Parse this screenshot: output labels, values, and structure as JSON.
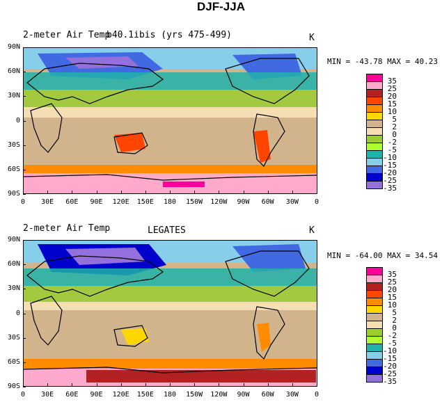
{
  "main_title": "DJF-JJA",
  "panels": [
    {
      "title": "2-meter Air Temp",
      "subtitle": "b40.1ibis (yrs 475-499)",
      "unit": "K",
      "min_label": "MIN =",
      "min_value": "-43.78",
      "max_label": "MAX =",
      "max_value": "40.23"
    },
    {
      "title": "2-meter Air Temp",
      "subtitle": "LEGATES",
      "unit": "K",
      "min_label": "MIN =",
      "min_value": "-64.00",
      "max_label": "MAX =",
      "max_value": "34.54"
    }
  ],
  "lat_labels": [
    "90N",
    "60N",
    "30N",
    "0",
    "30S",
    "60S",
    "90S"
  ],
  "lon_labels": [
    "0",
    "30E",
    "60E",
    "90E",
    "120E",
    "150E",
    "180",
    "150W",
    "120W",
    "90W",
    "60W",
    "30W",
    "0"
  ],
  "legend": {
    "levels": [
      "35",
      "25",
      "20",
      "15",
      "10",
      "5",
      "2",
      "0",
      "-2",
      "-5",
      "-10",
      "-15",
      "-20",
      "-25",
      "-35"
    ],
    "colors": [
      "#ff0099",
      "#ffaacc",
      "#b22222",
      "#ff4500",
      "#ff8c00",
      "#ffd700",
      "#d2b48c",
      "#f5deb3",
      "#9acd32",
      "#adff2f",
      "#20b2aa",
      "#87ceeb",
      "#4169e1",
      "#0000cd",
      "#9370db"
    ]
  }
}
